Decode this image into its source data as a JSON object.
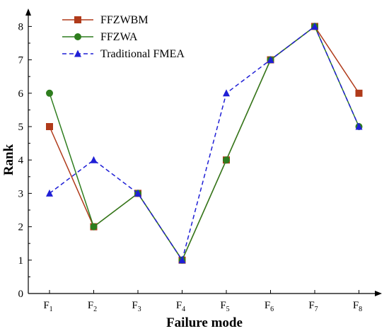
{
  "chart_data": {
    "type": "line",
    "xlabel": "Failure mode",
    "ylabel": "Rank",
    "categories": [
      {
        "base": "F",
        "sub": "1"
      },
      {
        "base": "F",
        "sub": "2"
      },
      {
        "base": "F",
        "sub": "3"
      },
      {
        "base": "F",
        "sub": "4"
      },
      {
        "base": "F",
        "sub": "5"
      },
      {
        "base": "F",
        "sub": "6"
      },
      {
        "base": "F",
        "sub": "7"
      },
      {
        "base": "F",
        "sub": "8"
      }
    ],
    "ylim": [
      0,
      8.5
    ],
    "yticks": [
      "0",
      "1",
      "2",
      "3",
      "4",
      "5",
      "6",
      "7",
      "8"
    ],
    "legend_position": "top-left",
    "grid": false,
    "series": [
      {
        "name": "FFZWBM",
        "values": [
          5,
          2,
          3,
          1,
          4,
          7,
          8,
          6
        ],
        "color": "#b03a1a",
        "marker": "square",
        "line": "solid"
      },
      {
        "name": "FFZWA",
        "values": [
          6,
          2,
          3,
          1,
          4,
          7,
          8,
          5
        ],
        "color": "#2e7d1e",
        "marker": "circle",
        "line": "solid"
      },
      {
        "name": "Traditional FMEA",
        "values": [
          3,
          4,
          3,
          1,
          6,
          7,
          8,
          5
        ],
        "color": "#1f1fd6",
        "marker": "triangle",
        "line": "dashed"
      }
    ]
  }
}
